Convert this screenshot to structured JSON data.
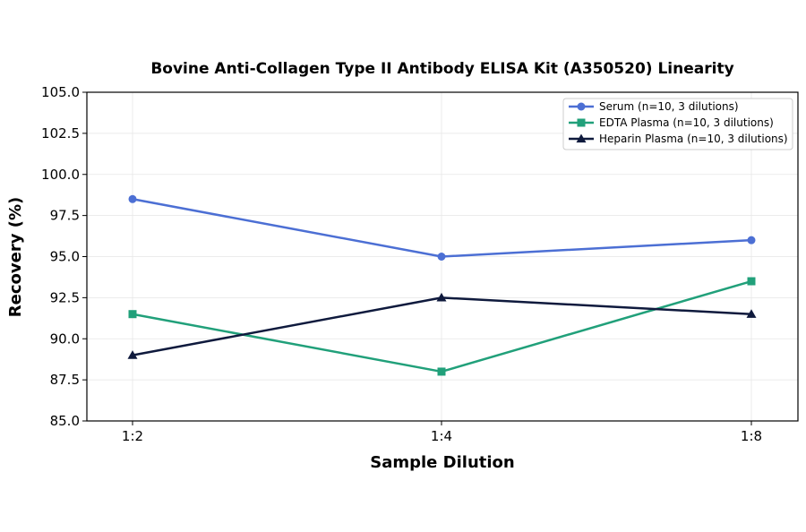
{
  "chart_data": {
    "type": "line",
    "title": "Bovine Anti-Collagen Type II Antibody ELISA Kit (A350520) Linearity",
    "xlabel": "Sample Dilution",
    "ylabel": "Recovery (%)",
    "categories": [
      "1:2",
      "1:4",
      "1:8"
    ],
    "ylim": [
      85.0,
      105.0
    ],
    "yticks": [
      "85.0",
      "87.5",
      "90.0",
      "92.5",
      "95.0",
      "97.5",
      "100.0",
      "102.5",
      "105.0"
    ],
    "grid": true,
    "legend_position": "top-right",
    "series": [
      {
        "name": "Serum (n=10, 3 dilutions)",
        "values": [
          98.5,
          95.0,
          96.0
        ],
        "color": "#4c6fd4",
        "marker": "circle"
      },
      {
        "name": "EDTA Plasma (n=10, 3 dilutions)",
        "values": [
          91.5,
          88.0,
          93.5
        ],
        "color": "#21a07a",
        "marker": "square"
      },
      {
        "name": "Heparin Plasma (n=10, 3 dilutions)",
        "values": [
          89.0,
          92.5,
          91.5
        ],
        "color": "#0f1a3d",
        "marker": "triangle"
      }
    ]
  }
}
